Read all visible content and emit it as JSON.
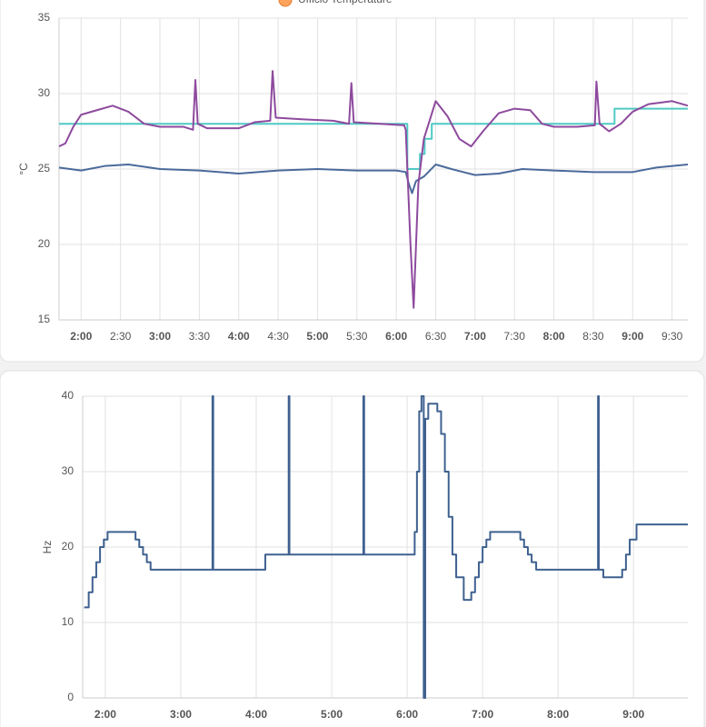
{
  "chart_data": [
    {
      "type": "line",
      "legend": [
        {
          "name": "Ufficio Temperature",
          "color": "#ffa35c"
        }
      ],
      "ylabel": "°C",
      "xlim": [
        1.72,
        9.7
      ],
      "ylim": [
        15,
        35
      ],
      "yticks": [
        15,
        20,
        25,
        30,
        35
      ],
      "grid": true,
      "xticks": [
        {
          "value": 2,
          "label": "2:00"
        },
        {
          "value": 2.5,
          "label": "2:30"
        },
        {
          "value": 3,
          "label": "3:00"
        },
        {
          "value": 3.5,
          "label": "3:30"
        },
        {
          "value": 4,
          "label": "4:00"
        },
        {
          "value": 4.5,
          "label": "4:30"
        },
        {
          "value": 5,
          "label": "5:00"
        },
        {
          "value": 5.5,
          "label": "5:30"
        },
        {
          "value": 6,
          "label": "6:00"
        },
        {
          "value": 6.5,
          "label": "6:30"
        },
        {
          "value": 7,
          "label": "7:00"
        },
        {
          "value": 7.5,
          "label": "7:30"
        },
        {
          "value": 8,
          "label": "8:00"
        },
        {
          "value": 8.5,
          "label": "8:30"
        },
        {
          "value": 9,
          "label": "9:00"
        },
        {
          "value": 9.5,
          "label": "9:30"
        }
      ],
      "series": [
        {
          "color": "#4fc9c4",
          "step": true,
          "x": [
            1.72,
            6.14,
            6.3,
            6.36,
            6.45,
            8.77,
            9.7
          ],
          "values": [
            28,
            25,
            26,
            27,
            28,
            29,
            29
          ]
        },
        {
          "color": "#4a6a9a",
          "step": false,
          "x": [
            1.72,
            2.0,
            2.3,
            2.6,
            3.0,
            3.5,
            4.0,
            4.5,
            5.0,
            5.5,
            6.0,
            6.12,
            6.16,
            6.2,
            6.25,
            6.35,
            6.5,
            6.7,
            7.0,
            7.3,
            7.6,
            8.0,
            8.5,
            9.0,
            9.3,
            9.7
          ],
          "values": [
            25.1,
            24.9,
            25.2,
            25.3,
            25.0,
            24.9,
            24.7,
            24.9,
            25.0,
            24.9,
            24.9,
            24.8,
            24.0,
            23.4,
            24.2,
            24.5,
            25.3,
            25.0,
            24.6,
            24.7,
            25.0,
            24.9,
            24.8,
            24.8,
            25.1,
            25.3
          ]
        },
        {
          "color": "#8e4a9e",
          "step": false,
          "x": [
            1.72,
            1.8,
            1.9,
            2.0,
            2.2,
            2.4,
            2.6,
            2.8,
            3.0,
            3.3,
            3.42,
            3.45,
            3.48,
            3.6,
            4.0,
            4.2,
            4.4,
            4.43,
            4.47,
            4.8,
            5.2,
            5.4,
            5.43,
            5.46,
            5.8,
            6.1,
            6.12,
            6.18,
            6.22,
            6.28,
            6.35,
            6.5,
            6.65,
            6.8,
            6.95,
            7.1,
            7.3,
            7.5,
            7.7,
            7.85,
            8.0,
            8.3,
            8.52,
            8.54,
            8.58,
            8.7,
            8.85,
            9.0,
            9.2,
            9.5,
            9.7
          ],
          "values": [
            26.5,
            26.7,
            27.8,
            28.6,
            28.9,
            29.2,
            28.8,
            28.0,
            27.8,
            27.8,
            27.6,
            30.9,
            28.0,
            27.7,
            27.7,
            28.1,
            28.2,
            31.5,
            28.4,
            28.3,
            28.2,
            28.0,
            30.7,
            28.1,
            28.0,
            27.9,
            27.6,
            20,
            15.8,
            24,
            27,
            29.5,
            28.5,
            27.0,
            26.5,
            27.5,
            28.7,
            29.0,
            28.9,
            28.0,
            27.8,
            27.8,
            27.9,
            30.8,
            28.0,
            27.5,
            28.0,
            28.8,
            29.3,
            29.5,
            29.2
          ]
        }
      ]
    },
    {
      "type": "line",
      "ylabel": "Hz",
      "xlim": [
        1.7,
        9.72
      ],
      "ylim": [
        0,
        40
      ],
      "yticks": [
        0,
        10,
        20,
        30,
        40
      ],
      "grid": true,
      "xticks": [
        {
          "value": 2,
          "label": "2:00"
        },
        {
          "value": 3,
          "label": "3:00"
        },
        {
          "value": 4,
          "label": "4:00"
        },
        {
          "value": 5,
          "label": "5:00"
        },
        {
          "value": 6,
          "label": "6:00"
        },
        {
          "value": 7,
          "label": "7:00"
        },
        {
          "value": 8,
          "label": "8:00"
        },
        {
          "value": 9,
          "label": "9:00"
        }
      ],
      "series": [
        {
          "color": "#3f6190",
          "step": true,
          "x": [
            1.72,
            1.78,
            1.83,
            1.88,
            1.93,
            1.98,
            2.03,
            2.1,
            2.4,
            2.45,
            2.5,
            2.55,
            2.6,
            2.65,
            3.42,
            3.43,
            4.12,
            4.19,
            4.43,
            4.44,
            5.42,
            5.43,
            6.1,
            6.13,
            6.16,
            6.19,
            6.22,
            6.24,
            6.28,
            6.4,
            6.45,
            6.5,
            6.55,
            6.6,
            6.65,
            6.75,
            6.85,
            6.9,
            6.95,
            7.0,
            7.05,
            7.1,
            7.19,
            7.5,
            7.55,
            7.6,
            7.65,
            7.71,
            8.53,
            8.54,
            8.6,
            8.85,
            8.9,
            8.95,
            9.04,
            9.72
          ],
          "values": [
            12,
            14,
            16,
            18,
            20,
            21,
            22,
            22,
            21,
            20,
            19,
            18,
            17,
            17,
            40,
            17,
            19,
            19,
            40,
            19,
            40,
            19,
            22,
            30,
            38,
            40,
            0,
            37,
            39,
            38,
            35,
            30,
            24,
            19,
            16,
            13,
            14,
            16,
            18,
            20,
            21,
            22,
            22,
            21,
            20,
            19,
            18,
            17,
            40,
            17,
            16,
            17,
            19,
            21,
            23,
            23
          ]
        }
      ]
    }
  ]
}
